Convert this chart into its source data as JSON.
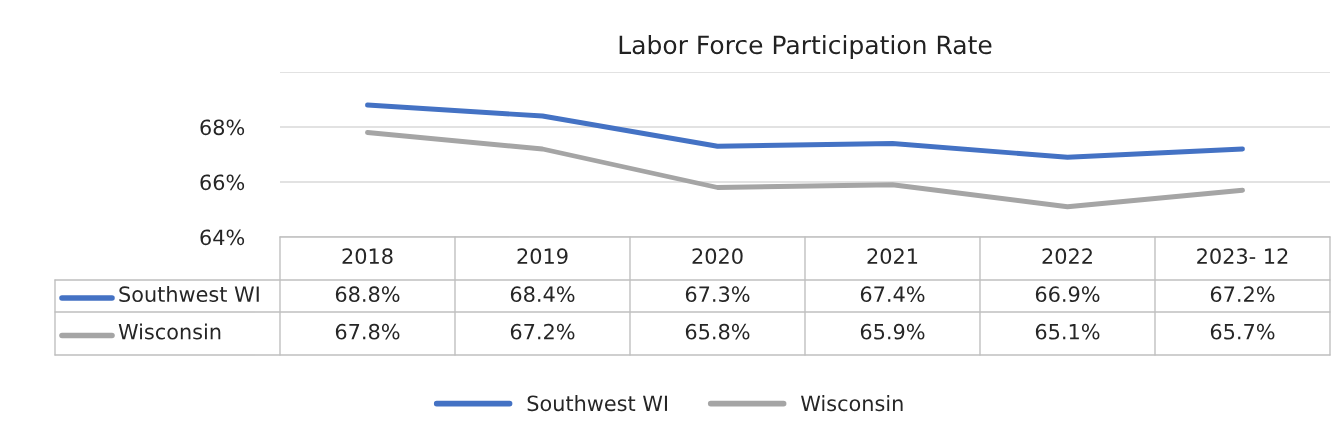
{
  "chart_data": {
    "type": "line",
    "title": "Labor Force Participation Rate",
    "categories": [
      "2018",
      "2019",
      "2020",
      "2021",
      "2022",
      "2023- 12"
    ],
    "series": [
      {
        "name": "Southwest WI",
        "color": "#4472c4",
        "values": [
          68.8,
          68.4,
          67.3,
          67.4,
          66.9,
          67.2
        ],
        "value_labels": [
          "68.8%",
          "68.4%",
          "67.3%",
          "67.4%",
          "66.9%",
          "67.2%"
        ]
      },
      {
        "name": "Wisconsin",
        "color": "#a5a5a5",
        "values": [
          67.8,
          67.2,
          65.8,
          65.9,
          65.1,
          65.7
        ],
        "value_labels": [
          "67.8%",
          "67.2%",
          "65.8%",
          "65.9%",
          "65.1%",
          "65.7%"
        ]
      }
    ],
    "ylim": [
      64,
      70
    ],
    "yticks": [
      {
        "value": 64,
        "label": "64%"
      },
      {
        "value": 66,
        "label": "66%"
      },
      {
        "value": 68,
        "label": "68%"
      },
      {
        "value": 70,
        "label": null
      }
    ],
    "grid": "y",
    "legend": "bottom",
    "marker": "none",
    "line_style": "solid"
  }
}
